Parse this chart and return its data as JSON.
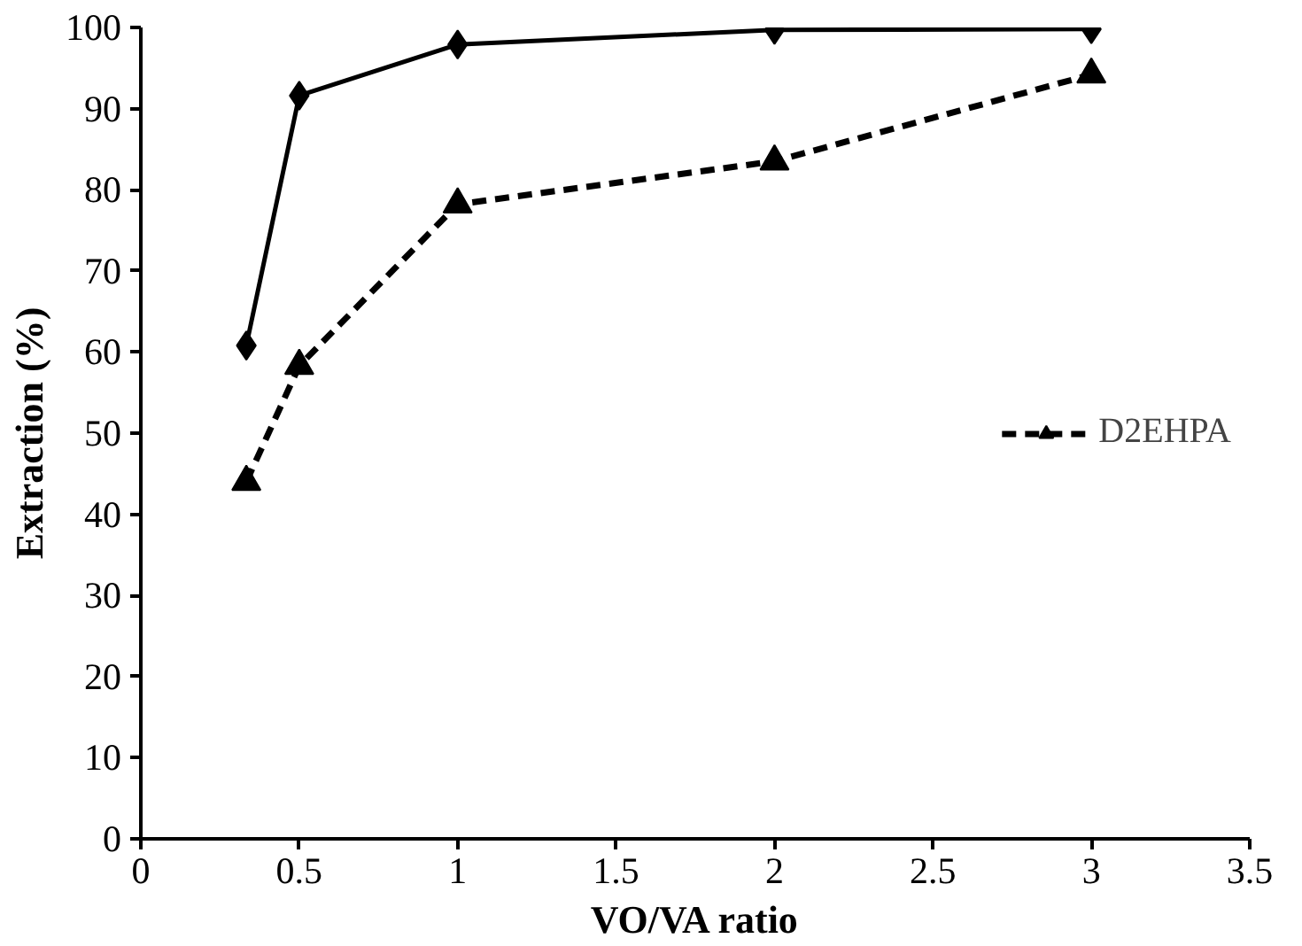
{
  "chart_data": {
    "type": "line",
    "xlabel": "VO/VA ratio",
    "ylabel": "Extraction (%)",
    "xlim": [
      0,
      3.5
    ],
    "xticks": [
      0,
      0.5,
      1,
      1.5,
      2,
      2.5,
      3,
      3.5
    ],
    "ylim": [
      0,
      100
    ],
    "yticks": [
      0,
      10,
      20,
      30,
      40,
      50,
      60,
      70,
      80,
      90,
      100
    ],
    "grid": false,
    "legend": "center right",
    "series": [
      {
        "color": "#000000",
        "marker": "diamond",
        "line_style": "solid",
        "x": [
          0.333,
          0.5,
          1,
          2,
          3
        ],
        "values": [
          60.8,
          91.6,
          97.9,
          99.7,
          99.8
        ]
      },
      {
        "name": "D2EHPA",
        "color": "#000000",
        "marker": "triangle",
        "line_style": "dashed",
        "x": [
          0.333,
          0.5,
          1,
          2,
          3
        ],
        "values": [
          44,
          58.3,
          78.2,
          83.5,
          94.2
        ]
      }
    ]
  }
}
